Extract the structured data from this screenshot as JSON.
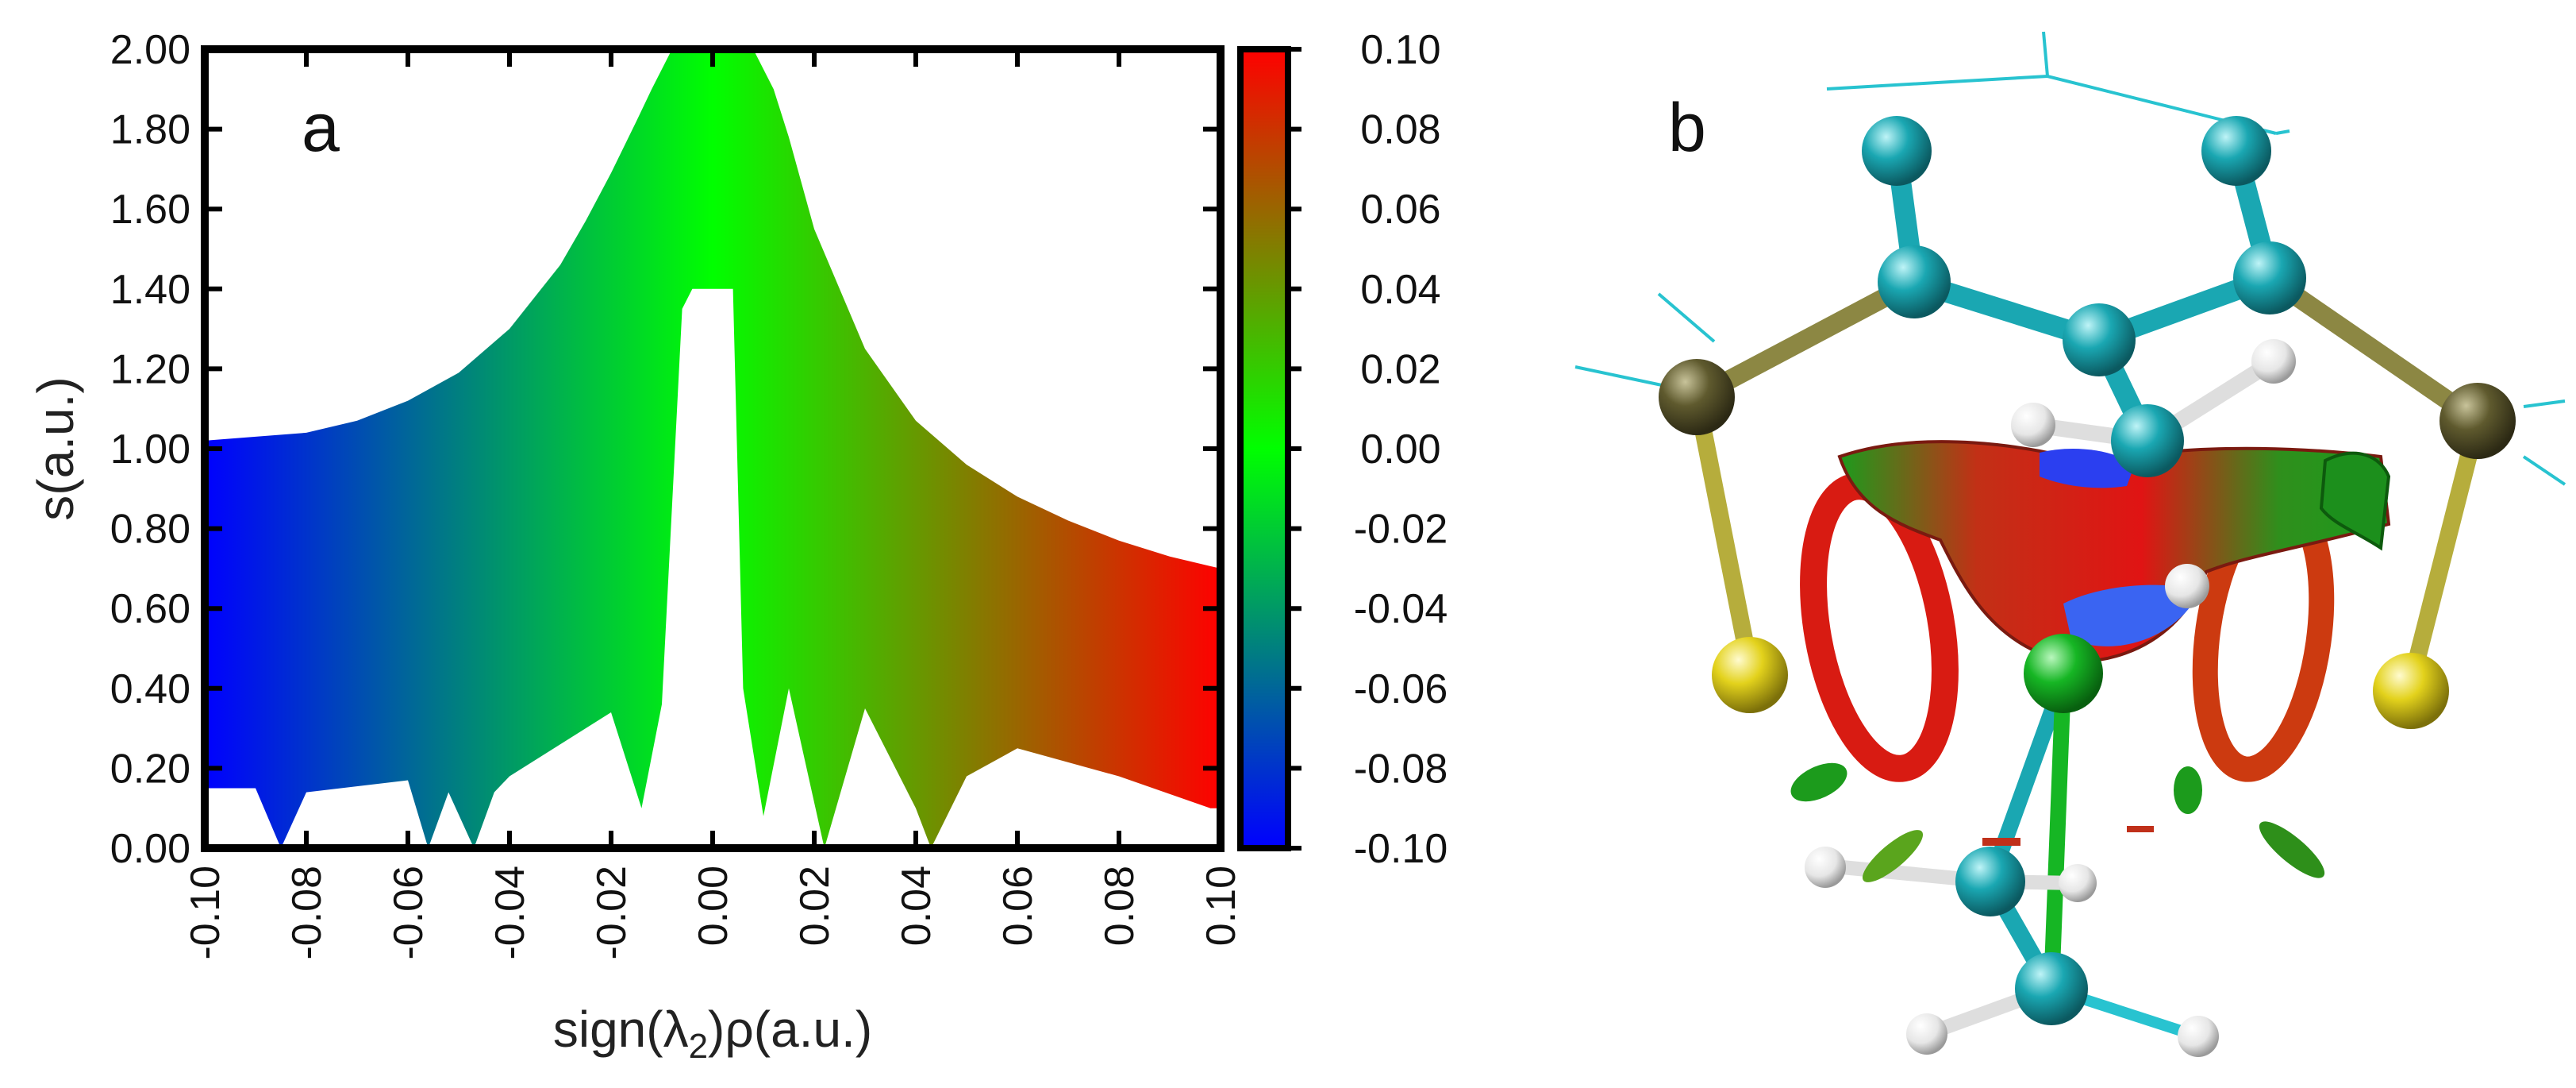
{
  "panels": {
    "a": {
      "label": "a"
    },
    "b": {
      "label": "b"
    }
  },
  "chart_data": {
    "type": "scatter",
    "title": "",
    "xlabel": "sign(λ2)ρ(a.u.)",
    "xlabel_parts": {
      "pre": "sign(λ",
      "sub": "2",
      "post": ")ρ(a.u.)"
    },
    "ylabel": "s(a.u.)",
    "xlim": [
      -0.1,
      0.1
    ],
    "ylim": [
      0.0,
      2.0
    ],
    "x_tick_labels": [
      "-0.10",
      "-0.08",
      "-0.06",
      "-0.04",
      "-0.02",
      "0.00",
      "0.02",
      "0.04",
      "0.06",
      "0.08",
      "0.10"
    ],
    "y_tick_labels": [
      "0.00",
      "0.20",
      "0.40",
      "0.60",
      "0.80",
      "1.00",
      "1.20",
      "1.40",
      "1.60",
      "1.80",
      "2.00"
    ],
    "colorbar": {
      "range": [
        -0.1,
        0.1
      ],
      "tick_labels": [
        "0.10",
        "0.08",
        "0.06",
        "0.04",
        "0.02",
        "0.00",
        "-0.02",
        "-0.04",
        "-0.06",
        "-0.08",
        "-0.10"
      ],
      "colors": [
        "#0000ff",
        "#00ff00",
        "#ff0000"
      ]
    },
    "grid": false,
    "series": [
      {
        "description": "upper envelope of reduced density gradient scatter",
        "x": [
          -0.1,
          -0.09,
          -0.08,
          -0.07,
          -0.06,
          -0.05,
          -0.04,
          -0.03,
          -0.025,
          -0.02,
          -0.015,
          -0.012,
          -0.008,
          -0.005,
          0.005,
          0.008,
          0.012,
          0.015,
          0.02,
          0.03,
          0.04,
          0.05,
          0.06,
          0.07,
          0.08,
          0.09,
          0.1
        ],
        "y": [
          1.02,
          1.03,
          1.04,
          1.07,
          1.12,
          1.19,
          1.3,
          1.46,
          1.57,
          1.69,
          1.82,
          1.9,
          2.0,
          2.0,
          2.0,
          2.0,
          1.9,
          1.78,
          1.55,
          1.25,
          1.07,
          0.96,
          0.88,
          0.82,
          0.77,
          0.73,
          0.7
        ]
      },
      {
        "description": "lower envelope of reduced density gradient scatter",
        "x": [
          -0.1,
          -0.09,
          -0.085,
          -0.08,
          -0.06,
          -0.056,
          -0.052,
          -0.047,
          -0.043,
          -0.04,
          -0.02,
          -0.014,
          -0.01,
          -0.006,
          -0.004,
          0.004,
          0.006,
          0.01,
          0.015,
          0.022,
          0.03,
          0.04,
          0.043,
          0.05,
          0.06,
          0.08,
          0.098,
          0.1
        ],
        "y": [
          0.15,
          0.15,
          0.0,
          0.14,
          0.17,
          0.0,
          0.14,
          0.0,
          0.14,
          0.18,
          0.34,
          0.1,
          0.36,
          1.35,
          1.4,
          1.4,
          0.4,
          0.08,
          0.4,
          0.0,
          0.35,
          0.1,
          0.0,
          0.18,
          0.25,
          0.18,
          0.1,
          0.1
        ]
      }
    ]
  },
  "molecule": {
    "description_colors": {
      "carbon": "#1aa7b2",
      "sulfur_dark": "#5f5a2e",
      "chlorine_yellow": "#e3d21c",
      "central_green": "#16b624",
      "hydrogen": "#f2f2f2",
      "isosurface_red": "#e01414",
      "isosurface_blue": "#2b3ff0",
      "isosurface_green": "#1c9b1c"
    }
  }
}
